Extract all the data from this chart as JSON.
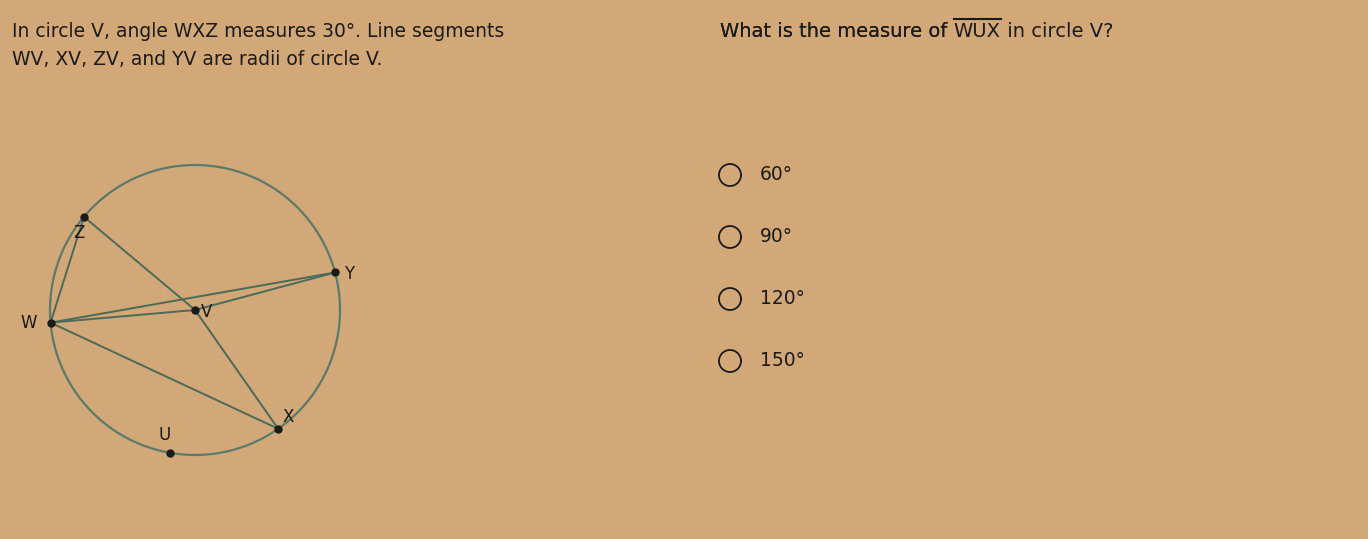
{
  "background_color": "#d2a878",
  "left_text_line1": "In circle V, angle WXZ measures 30°. Line segments",
  "left_text_line2": "WV, XV, ZV, and YV are radii of circle V.",
  "text_fontsize": 13.5,
  "text_color": "#1a1a1a",
  "circle_color": "#5a7a6a",
  "circle_linewidth": 1.6,
  "line_color": "#4a6a5a",
  "line_linewidth": 1.4,
  "point_color": "#1a1a1a",
  "point_size": 5,
  "question_fontsize": 14.0,
  "question_color": "#1a1a1a",
  "options": [
    "60°",
    "90°",
    "120°",
    "150°"
  ],
  "option_fontsize": 13.5,
  "option_color": "#1a1a1a",
  "radio_color": "#1a1a1a"
}
